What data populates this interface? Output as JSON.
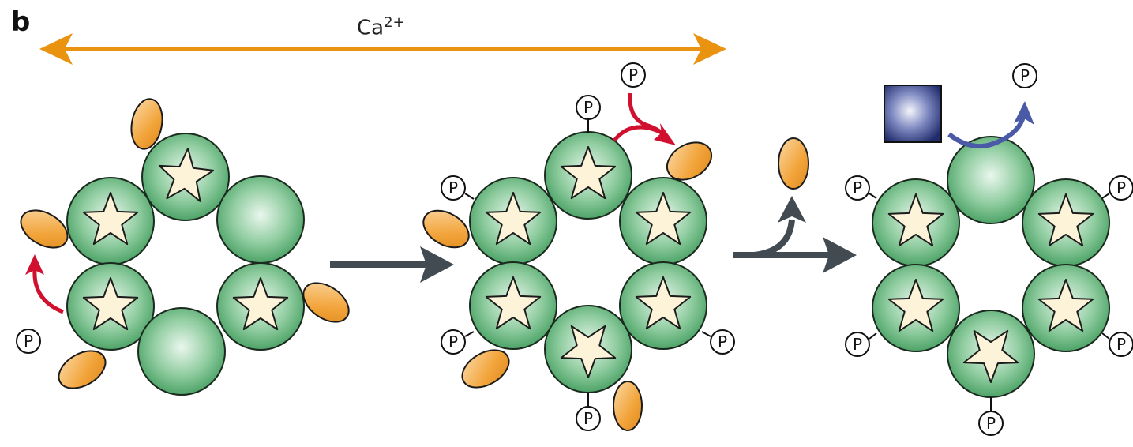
{
  "panel_label": "b",
  "ion": {
    "base": "Ca",
    "superscript": "2+"
  },
  "phospho_symbol": "P",
  "colors": {
    "subunit": "#3e9a5b",
    "subunit_light": "#dff2e4",
    "star": "#fdf3d8",
    "cam": "#f2a43a",
    "ca_arrow": "#ea9310",
    "process_arrow": "#424a52",
    "phospho_arrow": "#d0102e",
    "dephospho_arrow": "#4a5aa6",
    "phosphatase": "#2e3f86"
  },
  "icons": [
    "star-icon",
    "calmodulin-icon",
    "phosphate-icon",
    "phosphatase-icon"
  ]
}
